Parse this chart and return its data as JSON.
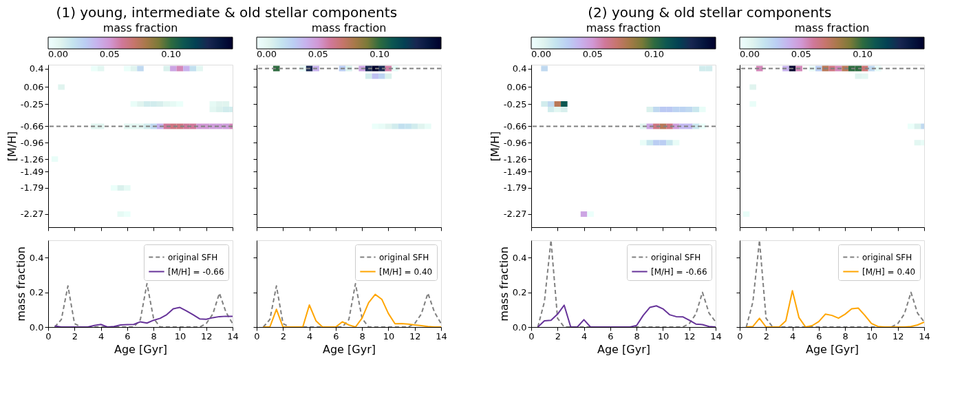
{
  "chart_data": [
    {
      "type": "scatter",
      "marker": "square",
      "title": "(1) young, intermediate & old stellar components",
      "ylabel": "[M/H]",
      "clabel": "mass fraction",
      "clim": [
        0,
        0.15
      ],
      "cticks": [
        {
          "value": 0,
          "label": "0.00"
        },
        {
          "value": 0.05,
          "label": "0.05"
        },
        {
          "value": 0.1,
          "label": "0.10"
        }
      ],
      "xlim": [
        0,
        14
      ],
      "ylim": [
        -2.51,
        0.47
      ],
      "xticks": [
        0,
        2,
        4,
        6,
        8,
        10,
        12,
        14
      ],
      "yticks": [
        0.4,
        0.06,
        -0.25,
        -0.66,
        -0.96,
        -1.26,
        -1.49,
        -1.79,
        -2.27
      ],
      "tick_labels": "y",
      "ref_lines": [
        {
          "axis": "y",
          "value": -0.66,
          "color": "#808080",
          "line_style": "dashed"
        }
      ],
      "x": [
        3.5,
        4,
        6,
        6.5,
        7,
        9,
        9.5,
        10,
        10.5,
        11,
        11.5,
        1,
        6.5,
        7,
        7.5,
        8,
        8.5,
        9,
        9.5,
        10,
        12.5,
        13,
        13.5,
        12.5,
        13,
        13.5,
        14,
        3.5,
        4,
        6,
        6.5,
        7,
        7.5,
        8,
        8.5,
        9,
        9.5,
        10,
        10.5,
        11,
        11.5,
        12,
        12.5,
        13,
        13.5,
        14,
        0.5,
        5,
        5.5,
        6,
        5.5,
        6
      ],
      "values": [
        0.4,
        0.4,
        0.4,
        0.4,
        0.4,
        0.4,
        0.4,
        0.4,
        0.4,
        0.4,
        0.4,
        0.06,
        -0.25,
        -0.25,
        -0.25,
        -0.25,
        -0.25,
        -0.25,
        -0.25,
        -0.25,
        -0.25,
        -0.25,
        -0.25,
        -0.35,
        -0.35,
        -0.35,
        -0.35,
        -0.66,
        -0.66,
        -0.66,
        -0.66,
        -0.66,
        -0.66,
        -0.66,
        -0.66,
        -0.66,
        -0.66,
        -0.66,
        -0.66,
        -0.66,
        -0.66,
        -0.66,
        -0.66,
        -0.66,
        -0.66,
        -0.66,
        -1.26,
        -1.79,
        -1.79,
        -1.79,
        -2.27,
        -2.27
      ],
      "cvalues": [
        0.003,
        0.008,
        0.003,
        0.01,
        0.025,
        0.012,
        0.045,
        0.055,
        0.04,
        0.022,
        0.008,
        0.01,
        0.004,
        0.01,
        0.015,
        0.015,
        0.013,
        0.008,
        0.006,
        0.003,
        0.006,
        0.01,
        0.01,
        0.008,
        0.012,
        0.015,
        0.015,
        0.01,
        0.01,
        0.008,
        0.008,
        0.008,
        0.015,
        0.025,
        0.04,
        0.06,
        0.065,
        0.065,
        0.06,
        0.06,
        0.05,
        0.05,
        0.048,
        0.048,
        0.048,
        0.055,
        0.004,
        0.003,
        0.012,
        0.006,
        0.006,
        0.003
      ]
    },
    {
      "type": "scatter",
      "marker": "square",
      "clabel": "mass fraction",
      "clim": [
        0,
        0.15
      ],
      "cticks": [
        {
          "value": 0,
          "label": "0.00"
        },
        {
          "value": 0.05,
          "label": "0.05"
        },
        {
          "value": 0.1,
          "label": "0.10"
        }
      ],
      "xlim": [
        0,
        14
      ],
      "ylim": [
        -2.51,
        0.47
      ],
      "xticks": [
        0,
        2,
        4,
        6,
        8,
        10,
        12,
        14
      ],
      "yticks": [
        0.4,
        0.06,
        -0.25,
        -0.66,
        -0.96,
        -1.26,
        -1.49,
        -1.79,
        -2.27
      ],
      "tick_labels": false,
      "ref_lines": [
        {
          "axis": "y",
          "value": 0.4,
          "color": "#808080",
          "line_style": "dashed"
        }
      ],
      "x": [
        1.5,
        3.5,
        4,
        4.5,
        6.5,
        7,
        8,
        8.5,
        9,
        9.5,
        10,
        10.5,
        8.5,
        9,
        9.5,
        10,
        9,
        9.5,
        10,
        10.5,
        11,
        11.5,
        12,
        12.5,
        13
      ],
      "values": [
        0.4,
        0.4,
        0.4,
        0.4,
        0.4,
        0.4,
        0.4,
        0.4,
        0.4,
        0.4,
        0.4,
        0.4,
        0.26,
        0.26,
        0.26,
        0.26,
        -0.66,
        -0.66,
        -0.66,
        -0.66,
        -0.66,
        -0.66,
        -0.66,
        -0.66,
        -0.66
      ],
      "cvalues": [
        0.1,
        0.003,
        0.13,
        0.04,
        0.03,
        0.012,
        0.045,
        0.13,
        0.15,
        0.13,
        0.058,
        0.005,
        0.015,
        0.035,
        0.028,
        0.012,
        0.003,
        0.005,
        0.01,
        0.015,
        0.022,
        0.02,
        0.015,
        0.01,
        0.005
      ]
    },
    {
      "type": "scatter",
      "marker": "square",
      "title": "(2) young & old stellar components",
      "ylabel": "[M/H]",
      "clabel": "mass fraction",
      "clim": [
        0,
        0.15
      ],
      "cticks": [
        {
          "value": 0,
          "label": "0.00"
        },
        {
          "value": 0.05,
          "label": "0.05"
        },
        {
          "value": 0.1,
          "label": "0.10"
        }
      ],
      "xlim": [
        0,
        14
      ],
      "ylim": [
        -2.51,
        0.47
      ],
      "xticks": [
        0,
        2,
        4,
        6,
        8,
        10,
        12,
        14
      ],
      "yticks": [
        0.4,
        0.06,
        -0.25,
        -0.66,
        -0.96,
        -1.26,
        -1.49,
        -1.79,
        -2.27
      ],
      "tick_labels": "y",
      "ref_lines": [
        {
          "axis": "y",
          "value": -0.66,
          "color": "#808080",
          "line_style": "dashed"
        }
      ],
      "x": [
        1,
        13,
        13.5,
        1,
        1.5,
        2,
        2.5,
        1.5,
        2,
        2.5,
        9,
        9.5,
        10,
        10.5,
        11,
        11.5,
        12,
        12.5,
        13,
        8.5,
        9,
        9.5,
        10,
        10.5,
        11,
        11.5,
        12,
        12.5,
        13,
        8.5,
        9,
        9.5,
        10,
        10.5,
        11,
        4,
        4.5
      ],
      "values": [
        0.4,
        0.4,
        0.4,
        -0.25,
        -0.25,
        -0.25,
        -0.25,
        -0.35,
        -0.35,
        -0.35,
        -0.35,
        -0.35,
        -0.35,
        -0.35,
        -0.35,
        -0.35,
        -0.35,
        -0.35,
        -0.35,
        -0.66,
        -0.66,
        -0.66,
        -0.66,
        -0.66,
        -0.66,
        -0.66,
        -0.66,
        -0.66,
        -0.66,
        -0.96,
        -0.96,
        -0.96,
        -0.96,
        -0.96,
        -0.96,
        -2.27,
        -2.27
      ],
      "cvalues": [
        0.025,
        0.015,
        0.015,
        0.015,
        0.025,
        0.075,
        0.11,
        0.015,
        0.008,
        0.013,
        0.012,
        0.025,
        0.032,
        0.032,
        0.028,
        0.028,
        0.025,
        0.018,
        0.004,
        0.01,
        0.045,
        0.065,
        0.075,
        0.065,
        0.048,
        0.038,
        0.038,
        0.018,
        0.003,
        0.004,
        0.018,
        0.03,
        0.03,
        0.018,
        0.005,
        0.045,
        0.002
      ]
    },
    {
      "type": "scatter",
      "marker": "square",
      "clabel": "mass fraction",
      "clim": [
        0,
        0.15
      ],
      "cticks": [
        {
          "value": 0,
          "label": "0.00"
        },
        {
          "value": 0.05,
          "label": "0.05"
        },
        {
          "value": 0.1,
          "label": "0.10"
        }
      ],
      "xlim": [
        0,
        14
      ],
      "ylim": [
        -2.51,
        0.47
      ],
      "xticks": [
        0,
        2,
        4,
        6,
        8,
        10,
        12,
        14
      ],
      "yticks": [
        0.4,
        0.06,
        -0.25,
        -0.66,
        -0.96,
        -1.26,
        -1.49,
        -1.79,
        -2.27
      ],
      "tick_labels": false,
      "ref_lines": [
        {
          "axis": "y",
          "value": 0.4,
          "color": "#808080",
          "line_style": "dashed"
        }
      ],
      "x": [
        1.5,
        3.5,
        4,
        4.5,
        5.5,
        6,
        6.5,
        7,
        7.5,
        8,
        8.5,
        9,
        9.5,
        10,
        10.5,
        9,
        9.5,
        1,
        1,
        13,
        13.5,
        14,
        13.5,
        14,
        0.5
      ],
      "values": [
        0.4,
        0.4,
        0.4,
        0.4,
        0.4,
        0.4,
        0.4,
        0.4,
        0.4,
        0.4,
        0.4,
        0.4,
        0.4,
        0.4,
        0.4,
        0.26,
        0.26,
        0.06,
        -0.25,
        -0.66,
        -0.66,
        -0.66,
        -0.96,
        -0.96,
        -2.27
      ],
      "cvalues": [
        0.055,
        0.04,
        0.15,
        0.055,
        0.005,
        0.03,
        0.075,
        0.065,
        0.055,
        0.075,
        0.1,
        0.1,
        0.068,
        0.025,
        0.005,
        0.01,
        0.008,
        0.01,
        0.004,
        0.003,
        0.012,
        0.025,
        0.008,
        0.005,
        0.004
      ]
    },
    {
      "type": "line",
      "xlabel": "Age [Gyr]",
      "ylabel": "mass fraction",
      "xlim": [
        0,
        14
      ],
      "ylim": [
        0,
        0.5
      ],
      "xticks": [
        0,
        2,
        4,
        6,
        8,
        10,
        12,
        14
      ],
      "yticks": [
        {
          "value": 0,
          "label": "0.0"
        },
        {
          "value": 0.2,
          "label": "0.2"
        },
        {
          "value": 0.4,
          "label": "0.4"
        }
      ],
      "legend": "top right",
      "marker": "none",
      "series": [
        {
          "name": "original SFH",
          "color": "#808080",
          "line_style": "dashed",
          "x": [
            0.5,
            1,
            1.5,
            2,
            2.5,
            3,
            3.5,
            4,
            4.5,
            5,
            5.5,
            6,
            6.5,
            7,
            7.5,
            8,
            8.5,
            9,
            9.5,
            10,
            10.5,
            11,
            11.5,
            12,
            12.5,
            13,
            13.5,
            14
          ],
          "values": [
            0,
            0.043,
            0.237,
            0.02,
            0,
            0,
            0,
            0,
            0,
            0,
            0,
            0,
            0,
            0.043,
            0.25,
            0.05,
            0,
            0,
            0,
            0,
            0,
            0,
            0,
            0.02,
            0.075,
            0.195,
            0.085,
            0.02
          ]
        },
        {
          "name": "[M/H] = -0.66",
          "color": "#663399",
          "line_style": "solid",
          "x": [
            0.5,
            1,
            1.5,
            2,
            2.5,
            3,
            3.5,
            4,
            4.5,
            5,
            5.5,
            6,
            6.5,
            7,
            7.5,
            8,
            8.5,
            9,
            9.5,
            10,
            10.5,
            11,
            11.5,
            12,
            12.5,
            13,
            13.5,
            14
          ],
          "values": [
            0.006,
            0,
            0,
            0,
            0,
            0,
            0.009,
            0.015,
            0,
            0.003,
            0.012,
            0.014,
            0.015,
            0.03,
            0.023,
            0.039,
            0.05,
            0.071,
            0.105,
            0.113,
            0.093,
            0.071,
            0.047,
            0.045,
            0.054,
            0.06,
            0.062,
            0.062
          ]
        }
      ]
    },
    {
      "type": "line",
      "xlabel": "Age [Gyr]",
      "xlim": [
        0,
        14
      ],
      "ylim": [
        0,
        0.5
      ],
      "xticks": [
        0,
        2,
        4,
        6,
        8,
        10,
        12,
        14
      ],
      "yticks": [
        0,
        0.2,
        0.4
      ],
      "tick_labels": "x",
      "legend": "top right",
      "marker": "none",
      "series": [
        {
          "name": "original SFH",
          "color": "#808080",
          "line_style": "dashed",
          "x": [
            0.5,
            1,
            1.5,
            2,
            2.5,
            3,
            3.5,
            4,
            4.5,
            5,
            5.5,
            6,
            6.5,
            7,
            7.5,
            8,
            8.5,
            9,
            9.5,
            10,
            10.5,
            11,
            11.5,
            12,
            12.5,
            13,
            13.5,
            14
          ],
          "values": [
            0,
            0.043,
            0.237,
            0.02,
            0,
            0,
            0,
            0,
            0,
            0,
            0,
            0,
            0,
            0.043,
            0.25,
            0.05,
            0,
            0,
            0,
            0,
            0,
            0,
            0,
            0.02,
            0.075,
            0.195,
            0.085,
            0.02
          ]
        },
        {
          "name": "[M/H] = 0.40",
          "color": "#ffa500",
          "line_style": "solid",
          "x": [
            0.5,
            1,
            1.5,
            2,
            2.5,
            3,
            3.5,
            4,
            4.5,
            5,
            5.5,
            6,
            6.5,
            7,
            7.5,
            8,
            8.5,
            9,
            9.5,
            10,
            10.5,
            11,
            11.5,
            12,
            12.5,
            13,
            13.5,
            14
          ],
          "values": [
            0,
            0,
            0.102,
            0,
            0,
            0,
            0,
            0.127,
            0.036,
            0,
            0,
            0,
            0.03,
            0.012,
            0,
            0.051,
            0.14,
            0.188,
            0.16,
            0.078,
            0.019,
            0.02,
            0.017,
            0.012,
            0.008,
            0.003,
            0,
            0
          ]
        }
      ]
    },
    {
      "type": "line",
      "xlabel": "Age [Gyr]",
      "ylabel": "mass fraction",
      "xlim": [
        0,
        14
      ],
      "ylim": [
        0,
        0.5
      ],
      "xticks": [
        0,
        2,
        4,
        6,
        8,
        10,
        12,
        14
      ],
      "yticks": [
        {
          "value": 0,
          "label": "0.0"
        },
        {
          "value": 0.2,
          "label": "0.2"
        },
        {
          "value": 0.4,
          "label": "0.4"
        }
      ],
      "legend": "top right",
      "marker": "none",
      "series": [
        {
          "name": "original SFH",
          "color": "#808080",
          "line_style": "dashed",
          "x": [
            0.5,
            1,
            1.5,
            2,
            2.5,
            3,
            3.5,
            4,
            4.5,
            5,
            5.5,
            6,
            6.5,
            7,
            7.5,
            8,
            8.5,
            9,
            9.5,
            10,
            10.5,
            11,
            11.5,
            12,
            12.5,
            13,
            13.5,
            14
          ],
          "values": [
            0,
            0.145,
            0.5,
            0.05,
            0,
            0,
            0,
            0,
            0,
            0,
            0,
            0,
            0,
            0,
            0,
            0,
            0,
            0,
            0,
            0,
            0,
            0,
            0,
            0.02,
            0.075,
            0.2,
            0.08,
            0.03
          ]
        },
        {
          "name": "[M/H] = -0.66",
          "color": "#663399",
          "line_style": "solid",
          "x": [
            0.5,
            1,
            1.5,
            2,
            2.5,
            3,
            3.5,
            4,
            4.5,
            5,
            5.5,
            6,
            6.5,
            7,
            7.5,
            8,
            8.5,
            9,
            9.5,
            10,
            10.5,
            11,
            11.5,
            12,
            12.5,
            13,
            13.5,
            14
          ],
          "values": [
            0,
            0.036,
            0.039,
            0.074,
            0.126,
            0,
            0,
            0.042,
            0,
            0,
            0,
            0,
            0,
            0,
            0,
            0.009,
            0.067,
            0.113,
            0.122,
            0.105,
            0.071,
            0.06,
            0.059,
            0.039,
            0.017,
            0.014,
            0.003,
            0
          ]
        }
      ]
    },
    {
      "type": "line",
      "xlabel": "Age [Gyr]",
      "xlim": [
        0,
        14
      ],
      "ylim": [
        0,
        0.5
      ],
      "xticks": [
        0,
        2,
        4,
        6,
        8,
        10,
        12,
        14
      ],
      "yticks": [
        0,
        0.2,
        0.4
      ],
      "tick_labels": "x",
      "legend": "top right",
      "marker": "none",
      "series": [
        {
          "name": "original SFH",
          "color": "#808080",
          "line_style": "dashed",
          "x": [
            0.5,
            1,
            1.5,
            2,
            2.5,
            3,
            3.5,
            4,
            4.5,
            5,
            5.5,
            6,
            6.5,
            7,
            7.5,
            8,
            8.5,
            9,
            9.5,
            10,
            10.5,
            11,
            11.5,
            12,
            12.5,
            13,
            13.5,
            14
          ],
          "values": [
            0,
            0.145,
            0.5,
            0.05,
            0,
            0,
            0,
            0,
            0,
            0,
            0,
            0,
            0,
            0,
            0,
            0,
            0,
            0,
            0,
            0,
            0,
            0,
            0,
            0.02,
            0.075,
            0.2,
            0.08,
            0.03
          ]
        },
        {
          "name": "[M/H] = 0.40",
          "color": "#ffa500",
          "line_style": "solid",
          "x": [
            0.5,
            1,
            1.5,
            2,
            2.5,
            3,
            3.5,
            4,
            4.5,
            5,
            5.5,
            6,
            6.5,
            7,
            7.5,
            8,
            8.5,
            9,
            9.5,
            10,
            10.5,
            11,
            11.5,
            12,
            12.5,
            13,
            13.5,
            14
          ],
          "values": [
            0,
            0.003,
            0.05,
            0,
            0,
            0,
            0.036,
            0.209,
            0.054,
            0,
            0.008,
            0.031,
            0.074,
            0.067,
            0.051,
            0.074,
            0.105,
            0.109,
            0.067,
            0.02,
            0.003,
            0,
            0,
            0,
            0,
            0.003,
            0.012,
            0.028
          ]
        }
      ]
    }
  ]
}
